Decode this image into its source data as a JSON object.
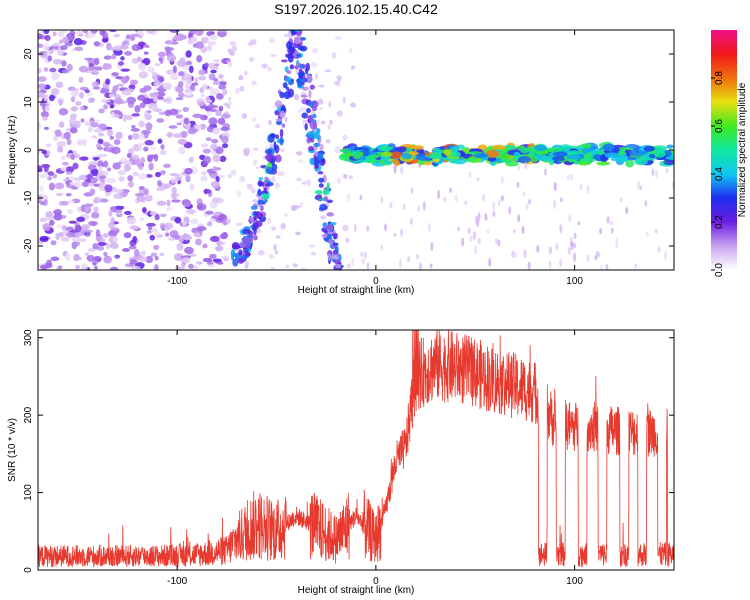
{
  "figure_title": "S197.2026.102.15.40.C42",
  "colors": {
    "snr_line": "#e8392e",
    "background": "#ffffff",
    "axes": "#000000"
  },
  "chart_data": [
    {
      "type": "heatmap",
      "title": "S197.2026.102.15.40.C42",
      "xlabel": "Height of straight line (km)",
      "ylabel": "Frequency (Hz)",
      "xlim": [
        -170,
        150
      ],
      "ylim": [
        -25,
        25
      ],
      "xticks": [
        -100,
        0,
        100
      ],
      "yticks": [
        -20,
        -10,
        0,
        10,
        20
      ],
      "colorbar": {
        "label": "Normalized spectral amplitude",
        "range": [
          0.0,
          1.0
        ],
        "ticks": [
          "0.0",
          "0.2",
          "0.4",
          "0.6",
          "0.8"
        ],
        "colormap": "rainbow (white-purple-blue-cyan-green-yellow-red-magenta)"
      },
      "features": [
        {
          "name": "scattered noise",
          "x_range": [
            -170,
            -75
          ],
          "y_range": [
            -25,
            25
          ],
          "amplitude": 0.1
        },
        {
          "name": "arc branch 1",
          "x_range": [
            -70,
            -40
          ],
          "y_range": [
            -22,
            25
          ],
          "amplitude": 0.3
        },
        {
          "name": "arc branch 2",
          "x_range": [
            -40,
            -20
          ],
          "y_range": [
            -25,
            25
          ],
          "amplitude": 0.3
        },
        {
          "name": "steady carrier line",
          "x_range": [
            -15,
            150
          ],
          "y_range": [
            -2,
            0
          ],
          "amplitude": 0.7
        }
      ]
    },
    {
      "type": "line",
      "title": "",
      "xlabel": "Height of straight line (km)",
      "ylabel": "SNR (10 * v/v)",
      "xlim": [
        -170,
        150
      ],
      "ylim": [
        0,
        310
      ],
      "xticks": [
        -100,
        0,
        100
      ],
      "yticks": [
        0,
        100,
        200,
        300
      ],
      "series": [
        {
          "name": "SNR",
          "color": "#e8392e",
          "envelope_x": [
            -170,
            -140,
            -110,
            -90,
            -75,
            -70,
            -60,
            -50,
            -40,
            -30,
            -20,
            -10,
            0,
            5,
            10,
            15,
            20,
            30,
            40,
            50,
            60,
            70,
            80,
            84,
            90,
            100,
            110,
            120,
            130,
            140,
            150
          ],
          "envelope_y": [
            18,
            18,
            18,
            20,
            25,
            40,
            60,
            50,
            70,
            55,
            40,
            70,
            40,
            80,
            140,
            160,
            250,
            265,
            262,
            255,
            245,
            238,
            230,
            215,
            190,
            185,
            185,
            180,
            178,
            178,
            180
          ],
          "dropouts_x": [
            84,
            93,
            104,
            114,
            125,
            134,
            144,
            149
          ],
          "dropout_level": 20
        }
      ]
    }
  ]
}
